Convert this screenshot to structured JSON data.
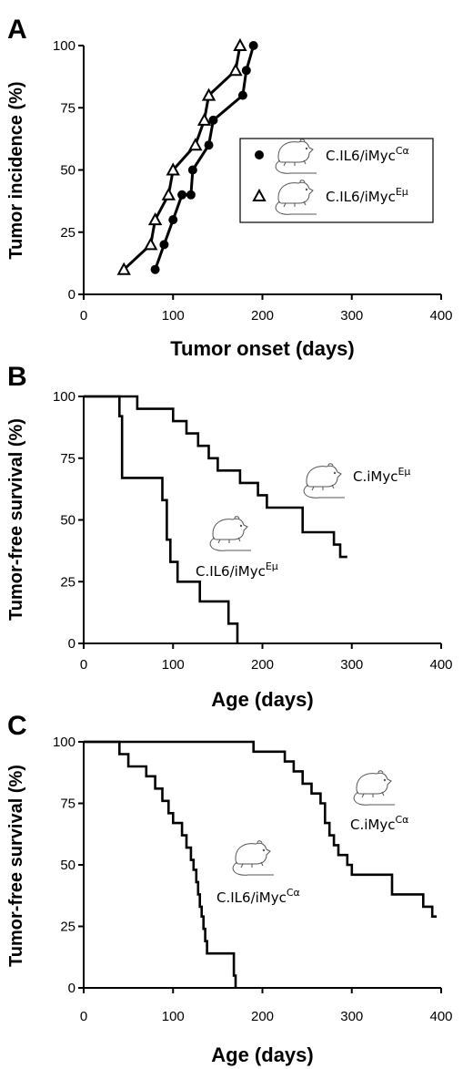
{
  "chart_data": [
    {
      "panel": "A",
      "type": "line",
      "xlabel": "Tumor onset (days)",
      "ylabel": "Tumor incidence (%)",
      "xlim": [
        0,
        400
      ],
      "ylim": [
        0,
        100
      ],
      "xticks": [
        0,
        100,
        200,
        300,
        400
      ],
      "yticks": [
        0,
        25,
        50,
        75,
        100
      ],
      "legend": {
        "placement": "right"
      },
      "series": [
        {
          "name_base": "C.IL6/iMyc",
          "name_sup": "Cα",
          "marker": "circle",
          "points": [
            [
              80,
              10
            ],
            [
              90,
              20
            ],
            [
              100,
              30
            ],
            [
              110,
              40
            ],
            [
              120,
              40
            ],
            [
              122,
              50
            ],
            [
              140,
              60
            ],
            [
              145,
              70
            ],
            [
              178,
              80
            ],
            [
              182,
              90
            ],
            [
              190,
              100
            ]
          ]
        },
        {
          "name_base": "C.IL6/iMyc",
          "name_sup": "Eμ",
          "marker": "triangle",
          "points": [
            [
              45,
              10
            ],
            [
              75,
              20
            ],
            [
              80,
              30
            ],
            [
              95,
              40
            ],
            [
              100,
              50
            ],
            [
              125,
              60
            ],
            [
              135,
              70
            ],
            [
              140,
              80
            ],
            [
              170,
              90
            ],
            [
              175,
              100
            ]
          ]
        }
      ]
    },
    {
      "panel": "B",
      "type": "line",
      "style": "step",
      "xlabel": "Age (days)",
      "ylabel": "Tumor-free survival (%)",
      "xlim": [
        0,
        400
      ],
      "ylim": [
        0,
        100
      ],
      "xticks": [
        0,
        100,
        200,
        300,
        400
      ],
      "yticks": [
        0,
        25,
        50,
        75,
        100
      ],
      "series": [
        {
          "name_base": "C.iMyc",
          "name_sup": "Eμ",
          "points": [
            [
              0,
              100
            ],
            [
              60,
              100
            ],
            [
              60,
              95
            ],
            [
              100,
              95
            ],
            [
              100,
              90
            ],
            [
              115,
              90
            ],
            [
              115,
              85
            ],
            [
              128,
              85
            ],
            [
              128,
              80
            ],
            [
              140,
              80
            ],
            [
              140,
              75
            ],
            [
              150,
              75
            ],
            [
              150,
              70
            ],
            [
              175,
              70
            ],
            [
              175,
              65
            ],
            [
              195,
              65
            ],
            [
              195,
              60
            ],
            [
              205,
              60
            ],
            [
              205,
              55
            ],
            [
              245,
              55
            ],
            [
              245,
              45
            ],
            [
              280,
              45
            ],
            [
              280,
              40
            ],
            [
              287,
              40
            ],
            [
              287,
              35
            ],
            [
              295,
              35
            ]
          ]
        },
        {
          "name_base": "C.IL6/iMyc",
          "name_sup": "Eμ",
          "points": [
            [
              0,
              100
            ],
            [
              40,
              100
            ],
            [
              40,
              92
            ],
            [
              43,
              92
            ],
            [
              43,
              67
            ],
            [
              88,
              67
            ],
            [
              88,
              58
            ],
            [
              93,
              58
            ],
            [
              93,
              42
            ],
            [
              97,
              42
            ],
            [
              97,
              33
            ],
            [
              105,
              33
            ],
            [
              105,
              25
            ],
            [
              130,
              25
            ],
            [
              130,
              17
            ],
            [
              162,
              17
            ],
            [
              162,
              8
            ],
            [
              172,
              8
            ],
            [
              172,
              0
            ]
          ]
        }
      ]
    },
    {
      "panel": "C",
      "type": "line",
      "style": "step",
      "xlabel": "Age (days)",
      "ylabel": "Tumor-free survival (%)",
      "xlim": [
        0,
        400
      ],
      "ylim": [
        0,
        100
      ],
      "xticks": [
        0,
        100,
        200,
        300,
        400
      ],
      "yticks": [
        0,
        25,
        50,
        75,
        100
      ],
      "series": [
        {
          "name_base": "C.iMyc",
          "name_sup": "Cα",
          "points": [
            [
              0,
              100
            ],
            [
              190,
              100
            ],
            [
              190,
              96
            ],
            [
              225,
              96
            ],
            [
              225,
              92
            ],
            [
              235,
              92
            ],
            [
              235,
              88
            ],
            [
              245,
              88
            ],
            [
              245,
              83
            ],
            [
              255,
              83
            ],
            [
              255,
              79
            ],
            [
              265,
              79
            ],
            [
              265,
              75
            ],
            [
              270,
              75
            ],
            [
              270,
              67
            ],
            [
              275,
              67
            ],
            [
              275,
              62
            ],
            [
              280,
              62
            ],
            [
              280,
              58
            ],
            [
              285,
              58
            ],
            [
              285,
              54
            ],
            [
              295,
              54
            ],
            [
              295,
              50
            ],
            [
              300,
              50
            ],
            [
              300,
              46
            ],
            [
              345,
              46
            ],
            [
              345,
              38
            ],
            [
              380,
              38
            ],
            [
              380,
              33
            ],
            [
              390,
              33
            ],
            [
              390,
              29
            ],
            [
              395,
              29
            ]
          ]
        },
        {
          "name_base": "C.IL6/iMyc",
          "name_sup": "Cα",
          "points": [
            [
              0,
              100
            ],
            [
              40,
              100
            ],
            [
              40,
              95
            ],
            [
              50,
              95
            ],
            [
              50,
              90
            ],
            [
              70,
              90
            ],
            [
              70,
              86
            ],
            [
              80,
              86
            ],
            [
              80,
              81
            ],
            [
              88,
              81
            ],
            [
              88,
              76
            ],
            [
              95,
              76
            ],
            [
              95,
              71
            ],
            [
              100,
              71
            ],
            [
              100,
              67
            ],
            [
              110,
              67
            ],
            [
              110,
              62
            ],
            [
              115,
              62
            ],
            [
              115,
              57
            ],
            [
              120,
              57
            ],
            [
              120,
              52
            ],
            [
              123,
              52
            ],
            [
              123,
              48
            ],
            [
              126,
              48
            ],
            [
              126,
              43
            ],
            [
              128,
              43
            ],
            [
              128,
              38
            ],
            [
              130,
              38
            ],
            [
              130,
              33
            ],
            [
              132,
              33
            ],
            [
              132,
              29
            ],
            [
              134,
              29
            ],
            [
              134,
              24
            ],
            [
              136,
              24
            ],
            [
              136,
              19
            ],
            [
              138,
              19
            ],
            [
              138,
              14
            ],
            [
              168,
              14
            ],
            [
              168,
              5
            ],
            [
              170,
              5
            ],
            [
              170,
              0
            ]
          ]
        }
      ]
    }
  ]
}
